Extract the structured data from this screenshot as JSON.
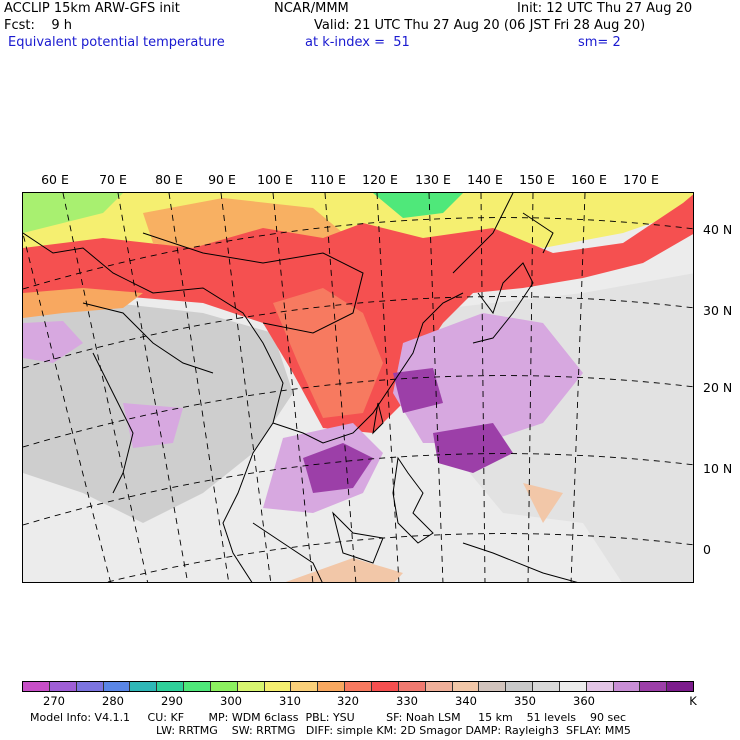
{
  "header": {
    "line1_left": "ACCLIP 15km ARW-GFS init",
    "line1_center": "NCAR/MMM",
    "line1_right": "Init: 12 UTC Thu 27 Aug 20",
    "line2_left": "Fcst:    9 h",
    "line2_right": "Valid: 21 UTC Thu 27 Aug 20 (06 JST Fri 28 Aug 20)",
    "line3_left": "Equivalent potential temperature",
    "line3_center": "at k-index =  51",
    "line3_right": "sm= 2"
  },
  "longitude_labels": [
    "60 E",
    "70 E",
    "80 E",
    "90 E",
    "100 E",
    "110 E",
    "120 E",
    "130 E",
    "140 E",
    "150 E",
    "160 E",
    "170 E"
  ],
  "latitude_labels": [
    "40 N",
    "30 N",
    "20 N",
    "10 N",
    "0"
  ],
  "colorbar": {
    "colors": [
      "#c74fc7",
      "#9f5fd6",
      "#7c74e0",
      "#5a86e6",
      "#2fb7b7",
      "#2fd09a",
      "#4fe87a",
      "#8cf060",
      "#d7f570",
      "#f5ef70",
      "#fad07a",
      "#f8a860",
      "#f77a60",
      "#f55050",
      "#f07a70",
      "#f0b09a",
      "#f2c7a8",
      "#d2c4bd",
      "#c9c9c9",
      "#d9d9d9",
      "#ececec",
      "#e3c5e6",
      "#c98fd6",
      "#9c3fa8",
      "#7c1c8c"
    ],
    "labels": [
      "270",
      "280",
      "290",
      "300",
      "310",
      "320",
      "330",
      "340",
      "350",
      "360",
      "K"
    ],
    "field_colors": {
      "cold_north": "#f5ef70",
      "hot_band": "#f55050",
      "warm_band": "#f8a860",
      "moist_tropics": "#9c3fa8",
      "lavender": "#d7a8e0",
      "ocean": "#ececec",
      "gray": "#c9c9c9"
    }
  },
  "model_info": {
    "line1": "Model Info: V4.1.1     CU: KF       MP: WDM 6class  PBL: YSU         SF: Noah LSM     15 km    51 levels    90 sec",
    "line2": "LW: RRTMG    SW: RRTMG   DIFF: simple KM: 2D Smagor DAMP: Rayleigh3  SFLAY: MM5"
  }
}
